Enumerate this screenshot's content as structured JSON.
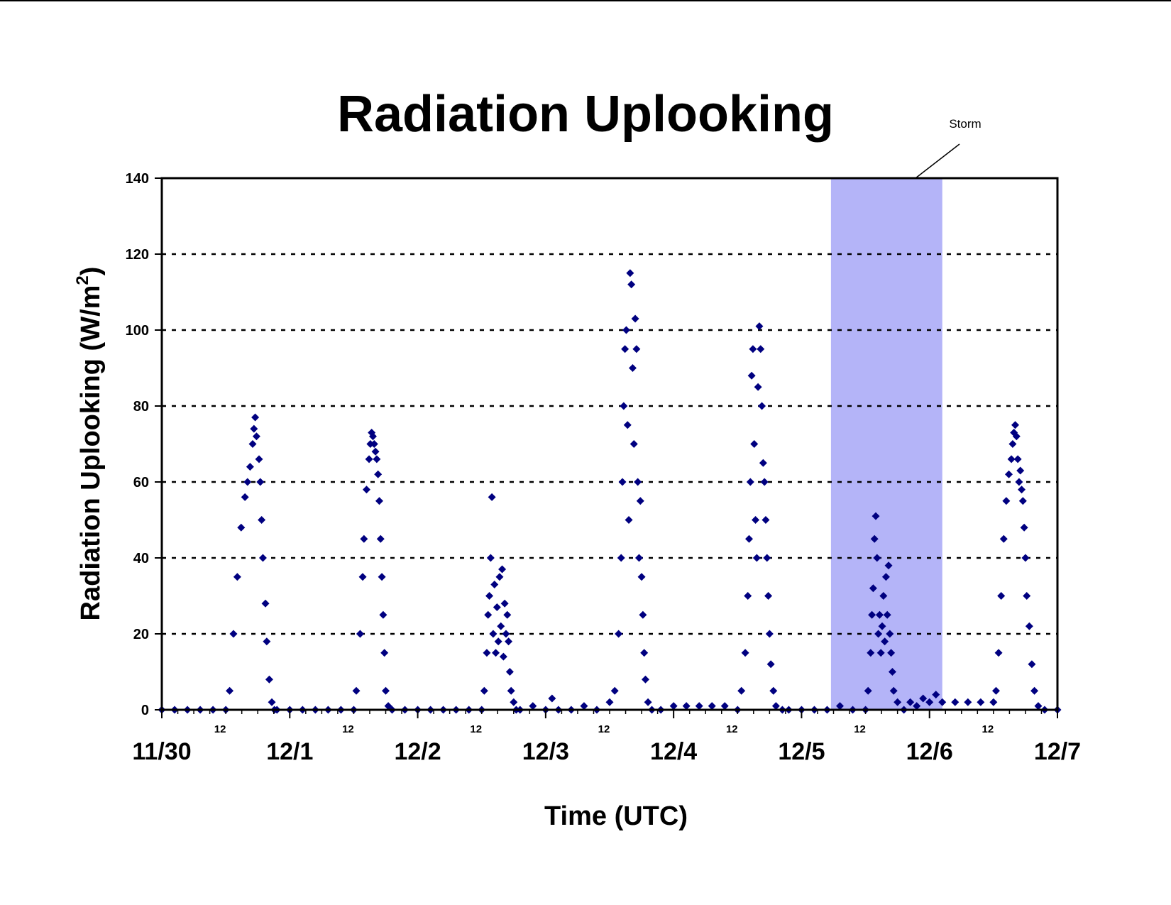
{
  "chart_data": {
    "type": "scatter",
    "title": "Radiation Uplooking",
    "xlabel": "Time (UTC)",
    "ylabel": "Radiation Uplooking (W/m",
    "ylabel_superscript": "2",
    "ylabel_suffix": ")",
    "ylim": [
      0,
      140
    ],
    "yticks": [
      0,
      20,
      40,
      60,
      80,
      100,
      120,
      140
    ],
    "xlim": [
      0,
      7
    ],
    "x_unit": "days since 11/30 00 UTC",
    "x_major_ticks": [
      {
        "x": 0,
        "label": "11/30"
      },
      {
        "x": 1,
        "label": "12/1"
      },
      {
        "x": 2,
        "label": "12/2"
      },
      {
        "x": 3,
        "label": "12/3"
      },
      {
        "x": 4,
        "label": "12/4"
      },
      {
        "x": 5,
        "label": "12/5"
      },
      {
        "x": 6,
        "label": "12/6"
      },
      {
        "x": 7,
        "label": "12/7"
      }
    ],
    "x_minor_label": "12",
    "x_minor_label_positions": [
      0.5,
      1.5,
      2.5,
      3.5,
      4.5,
      5.5,
      6.5
    ],
    "grid": "horizontal dotted",
    "legend": "none",
    "marker": "diamond",
    "marker_color": "#000080",
    "shaded_region": {
      "label": "Storm",
      "x_start": 5.23,
      "x_end": 6.1,
      "color": "#b4b4f8"
    },
    "series": [
      {
        "points": [
          [
            0.0,
            0
          ],
          [
            0.1,
            0
          ],
          [
            0.2,
            0
          ],
          [
            0.3,
            0
          ],
          [
            0.4,
            0
          ],
          [
            0.5,
            0
          ],
          [
            0.53,
            5
          ],
          [
            0.56,
            20
          ],
          [
            0.59,
            35
          ],
          [
            0.62,
            48
          ],
          [
            0.65,
            56
          ],
          [
            0.67,
            60
          ],
          [
            0.69,
            64
          ],
          [
            0.71,
            70
          ],
          [
            0.72,
            74
          ],
          [
            0.73,
            77
          ],
          [
            0.74,
            72
          ],
          [
            0.76,
            66
          ],
          [
            0.77,
            60
          ],
          [
            0.78,
            50
          ],
          [
            0.79,
            40
          ],
          [
            0.81,
            28
          ],
          [
            0.82,
            18
          ],
          [
            0.84,
            8
          ],
          [
            0.86,
            2
          ],
          [
            0.88,
            0
          ],
          [
            0.9,
            0
          ],
          [
            1.0,
            0
          ],
          [
            1.1,
            0
          ],
          [
            1.2,
            0
          ],
          [
            1.3,
            0
          ],
          [
            1.4,
            0
          ],
          [
            1.5,
            0
          ],
          [
            1.52,
            5
          ],
          [
            1.55,
            20
          ],
          [
            1.57,
            35
          ],
          [
            1.58,
            45
          ],
          [
            1.6,
            58
          ],
          [
            1.62,
            66
          ],
          [
            1.63,
            70
          ],
          [
            1.64,
            73
          ],
          [
            1.65,
            72
          ],
          [
            1.66,
            70
          ],
          [
            1.67,
            68
          ],
          [
            1.68,
            66
          ],
          [
            1.69,
            62
          ],
          [
            1.7,
            55
          ],
          [
            1.71,
            45
          ],
          [
            1.72,
            35
          ],
          [
            1.73,
            25
          ],
          [
            1.74,
            15
          ],
          [
            1.75,
            5
          ],
          [
            1.77,
            1
          ],
          [
            1.8,
            0
          ],
          [
            1.9,
            0
          ],
          [
            2.0,
            0
          ],
          [
            2.1,
            0
          ],
          [
            2.2,
            0
          ],
          [
            2.3,
            0
          ],
          [
            2.4,
            0
          ],
          [
            2.5,
            0
          ],
          [
            2.52,
            5
          ],
          [
            2.54,
            15
          ],
          [
            2.55,
            25
          ],
          [
            2.56,
            30
          ],
          [
            2.57,
            40
          ],
          [
            2.58,
            56
          ],
          [
            2.59,
            20
          ],
          [
            2.6,
            33
          ],
          [
            2.61,
            15
          ],
          [
            2.62,
            27
          ],
          [
            2.63,
            18
          ],
          [
            2.64,
            35
          ],
          [
            2.65,
            22
          ],
          [
            2.66,
            37
          ],
          [
            2.67,
            14
          ],
          [
            2.68,
            28
          ],
          [
            2.69,
            20
          ],
          [
            2.7,
            25
          ],
          [
            2.71,
            18
          ],
          [
            2.72,
            10
          ],
          [
            2.73,
            5
          ],
          [
            2.75,
            2
          ],
          [
            2.77,
            0
          ],
          [
            2.8,
            0
          ],
          [
            2.9,
            1
          ],
          [
            3.0,
            0
          ],
          [
            3.05,
            3
          ],
          [
            3.1,
            0
          ],
          [
            3.2,
            0
          ],
          [
            3.3,
            1
          ],
          [
            3.4,
            0
          ],
          [
            3.5,
            2
          ],
          [
            3.54,
            5
          ],
          [
            3.57,
            20
          ],
          [
            3.59,
            40
          ],
          [
            3.6,
            60
          ],
          [
            3.61,
            80
          ],
          [
            3.62,
            95
          ],
          [
            3.63,
            100
          ],
          [
            3.64,
            75
          ],
          [
            3.65,
            50
          ],
          [
            3.66,
            115
          ],
          [
            3.67,
            112
          ],
          [
            3.68,
            90
          ],
          [
            3.69,
            70
          ],
          [
            3.7,
            103
          ],
          [
            3.71,
            95
          ],
          [
            3.72,
            60
          ],
          [
            3.73,
            40
          ],
          [
            3.74,
            55
          ],
          [
            3.75,
            35
          ],
          [
            3.76,
            25
          ],
          [
            3.77,
            15
          ],
          [
            3.78,
            8
          ],
          [
            3.8,
            2
          ],
          [
            3.83,
            0
          ],
          [
            3.9,
            0
          ],
          [
            4.0,
            1
          ],
          [
            4.1,
            1
          ],
          [
            4.2,
            1
          ],
          [
            4.3,
            1
          ],
          [
            4.4,
            1
          ],
          [
            4.5,
            0
          ],
          [
            4.53,
            5
          ],
          [
            4.56,
            15
          ],
          [
            4.58,
            30
          ],
          [
            4.59,
            45
          ],
          [
            4.6,
            60
          ],
          [
            4.61,
            88
          ],
          [
            4.62,
            95
          ],
          [
            4.63,
            70
          ],
          [
            4.64,
            50
          ],
          [
            4.65,
            40
          ],
          [
            4.66,
            85
          ],
          [
            4.67,
            101
          ],
          [
            4.68,
            95
          ],
          [
            4.69,
            80
          ],
          [
            4.7,
            65
          ],
          [
            4.71,
            60
          ],
          [
            4.72,
            50
          ],
          [
            4.73,
            40
          ],
          [
            4.74,
            30
          ],
          [
            4.75,
            20
          ],
          [
            4.76,
            12
          ],
          [
            4.78,
            5
          ],
          [
            4.8,
            1
          ],
          [
            4.85,
            0
          ],
          [
            4.9,
            0
          ],
          [
            5.0,
            0
          ],
          [
            5.1,
            0
          ],
          [
            5.2,
            0
          ],
          [
            5.3,
            1
          ],
          [
            5.4,
            0
          ],
          [
            5.5,
            0
          ],
          [
            5.52,
            5
          ],
          [
            5.54,
            15
          ],
          [
            5.55,
            25
          ],
          [
            5.56,
            32
          ],
          [
            5.57,
            45
          ],
          [
            5.58,
            51
          ],
          [
            5.59,
            40
          ],
          [
            5.6,
            20
          ],
          [
            5.61,
            25
          ],
          [
            5.62,
            15
          ],
          [
            5.63,
            22
          ],
          [
            5.64,
            30
          ],
          [
            5.65,
            18
          ],
          [
            5.66,
            35
          ],
          [
            5.67,
            25
          ],
          [
            5.68,
            38
          ],
          [
            5.69,
            20
          ],
          [
            5.7,
            15
          ],
          [
            5.71,
            10
          ],
          [
            5.72,
            5
          ],
          [
            5.75,
            2
          ],
          [
            5.8,
            0
          ],
          [
            5.85,
            2
          ],
          [
            5.9,
            1
          ],
          [
            5.95,
            3
          ],
          [
            6.0,
            2
          ],
          [
            6.05,
            4
          ],
          [
            6.1,
            2
          ],
          [
            6.2,
            2
          ],
          [
            6.3,
            2
          ],
          [
            6.4,
            2
          ],
          [
            6.5,
            2
          ],
          [
            6.52,
            5
          ],
          [
            6.54,
            15
          ],
          [
            6.56,
            30
          ],
          [
            6.58,
            45
          ],
          [
            6.6,
            55
          ],
          [
            6.62,
            62
          ],
          [
            6.64,
            66
          ],
          [
            6.65,
            70
          ],
          [
            6.66,
            73
          ],
          [
            6.67,
            75
          ],
          [
            6.68,
            72
          ],
          [
            6.69,
            66
          ],
          [
            6.7,
            60
          ],
          [
            6.71,
            63
          ],
          [
            6.72,
            58
          ],
          [
            6.73,
            55
          ],
          [
            6.74,
            48
          ],
          [
            6.75,
            40
          ],
          [
            6.76,
            30
          ],
          [
            6.78,
            22
          ],
          [
            6.8,
            12
          ],
          [
            6.82,
            5
          ],
          [
            6.85,
            1
          ],
          [
            6.9,
            0
          ],
          [
            7.0,
            0
          ]
        ]
      }
    ]
  }
}
